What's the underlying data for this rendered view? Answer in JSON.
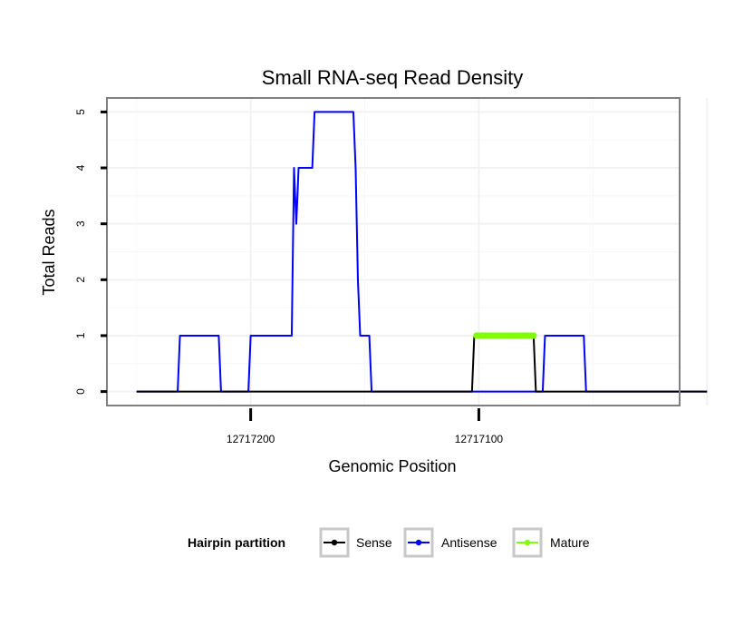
{
  "chart_data": {
    "type": "line",
    "title": "Small RNA-seq Read Density",
    "xlabel": "Genomic Position",
    "ylabel": "Total Reads",
    "x_reversed": true,
    "xlim": [
      12717263,
      12717012
    ],
    "ylim": [
      -0.25,
      5.25
    ],
    "x_ticks": [
      12717200,
      12717100
    ],
    "x_tick_labels": [
      "12717200",
      "12717100"
    ],
    "y_ticks": [
      0,
      1,
      2,
      3,
      4,
      5
    ],
    "y_tick_labels": [
      "0",
      "1",
      "2",
      "3",
      "4",
      "5"
    ],
    "grid": true,
    "legend": {
      "title": "Hairpin partition",
      "position": "bottom",
      "entries": [
        {
          "name": "Sense",
          "color": "#000000"
        },
        {
          "name": "Antisense",
          "color": "#0000ff"
        },
        {
          "name": "Mature",
          "color": "#7fff00"
        }
      ]
    },
    "series": [
      {
        "name": "Antisense",
        "color": "#0000ff",
        "points": [
          [
            12717250,
            0
          ],
          [
            12717232,
            0
          ],
          [
            12717231,
            1
          ],
          [
            12717214,
            1
          ],
          [
            12717213,
            0
          ],
          [
            12717201,
            0
          ],
          [
            12717200,
            1
          ],
          [
            12717182,
            1
          ],
          [
            12717181,
            4
          ],
          [
            12717180,
            3
          ],
          [
            12717179,
            4
          ],
          [
            12717173,
            4
          ],
          [
            12717172,
            5
          ],
          [
            12717155,
            5
          ],
          [
            12717154,
            4
          ],
          [
            12717153,
            2
          ],
          [
            12717152,
            1
          ],
          [
            12717148,
            1
          ],
          [
            12717147,
            0
          ],
          [
            12717072,
            0
          ],
          [
            12717071,
            1
          ],
          [
            12717054,
            1
          ],
          [
            12717053,
            0
          ],
          [
            12717000,
            0
          ]
        ]
      },
      {
        "name": "Sense",
        "color": "#000000",
        "points": [
          [
            12717250,
            0
          ],
          [
            12717103,
            0
          ],
          [
            12717102,
            1
          ],
          [
            12717076,
            1
          ],
          [
            12717075,
            0
          ],
          [
            12717000,
            0
          ]
        ]
      },
      {
        "name": "Mature",
        "color": "#7fff00",
        "points": [
          [
            12717101,
            1
          ],
          [
            12717100,
            1
          ],
          [
            12717099,
            1
          ],
          [
            12717098,
            1
          ],
          [
            12717097,
            1
          ],
          [
            12717096,
            1
          ],
          [
            12717095,
            1
          ],
          [
            12717094,
            1
          ],
          [
            12717093,
            1
          ],
          [
            12717092,
            1
          ],
          [
            12717091,
            1
          ],
          [
            12717090,
            1
          ],
          [
            12717089,
            1
          ],
          [
            12717088,
            1
          ],
          [
            12717087,
            1
          ],
          [
            12717086,
            1
          ],
          [
            12717085,
            1
          ],
          [
            12717084,
            1
          ],
          [
            12717083,
            1
          ],
          [
            12717082,
            1
          ],
          [
            12717081,
            1
          ],
          [
            12717080,
            1
          ],
          [
            12717079,
            1
          ],
          [
            12717078,
            1
          ],
          [
            12717077,
            1
          ],
          [
            12717076,
            1
          ]
        ]
      }
    ]
  }
}
